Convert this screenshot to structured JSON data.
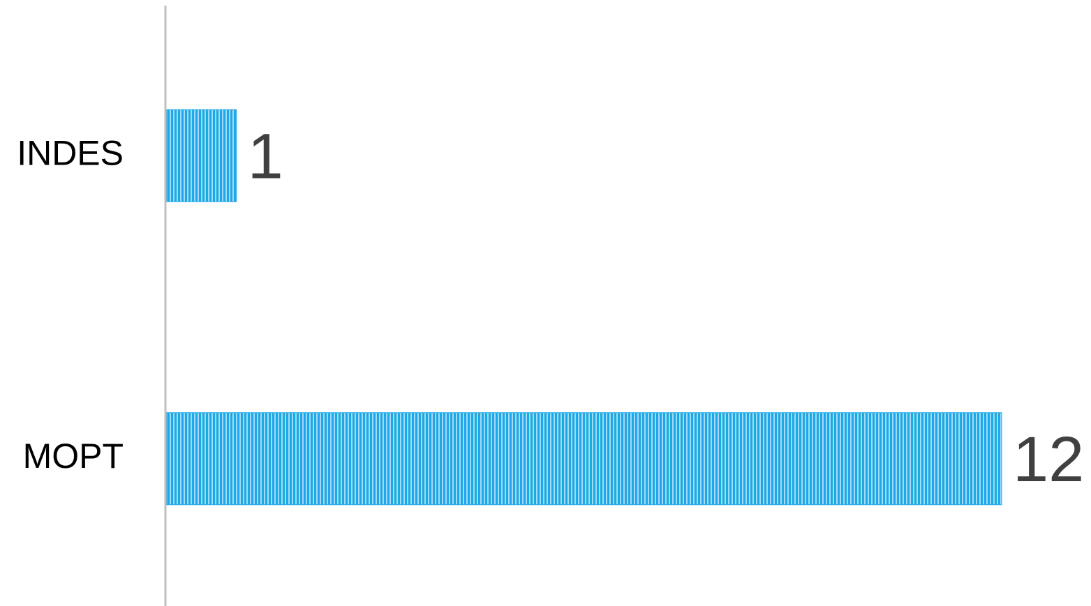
{
  "chart_data": {
    "type": "bar",
    "orientation": "horizontal",
    "categories": [
      "INDES",
      "MOPT"
    ],
    "values": [
      1,
      12
    ],
    "color": "#1fa8e6",
    "xlim": [
      0,
      12
    ]
  }
}
